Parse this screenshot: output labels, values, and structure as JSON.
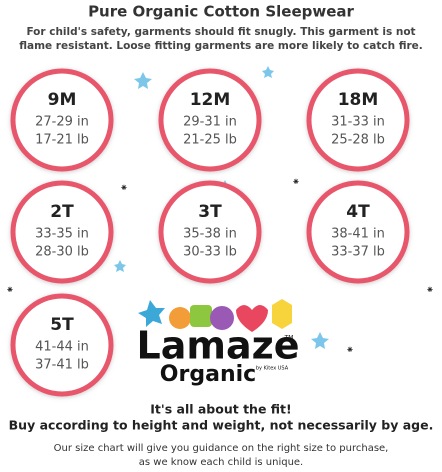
{
  "header": {
    "title": "Pure Organic Cotton Sleepwear",
    "notice": [
      "For child's safety, garments should fit snugly. This garment is not",
      "flame resistant. Loose fitting garments are more likely to catch fire."
    ]
  },
  "sizes": [
    {
      "label": "9M",
      "height": "27-29 in",
      "weight": "17-21 lb"
    },
    {
      "label": "12M",
      "height": "29-31 in",
      "weight": "21-25 lb"
    },
    {
      "label": "18M",
      "height": "31-33 in",
      "weight": "25-28 lb"
    },
    {
      "label": "2T",
      "height": "33-35 in",
      "weight": "28-30 lb"
    },
    {
      "label": "3T",
      "height": "35-38 in",
      "weight": "30-33 lb"
    },
    {
      "label": "4T",
      "height": "38-41 in",
      "weight": "33-37 lb"
    },
    {
      "label": "5T",
      "height": "41-44 in",
      "weight": "37-41 lb"
    }
  ],
  "logo": {
    "brand": "Lamaze",
    "trademark": "TM",
    "line": "Organic",
    "maker": "by Kitex USA"
  },
  "footer": {
    "headline": "It's all about the fit!",
    "advice": "Buy according to height and weight, not necessarily by age.",
    "note": [
      "Our size chart will give you guidance on the right size to purchase,",
      "as we know each child is unique."
    ]
  }
}
